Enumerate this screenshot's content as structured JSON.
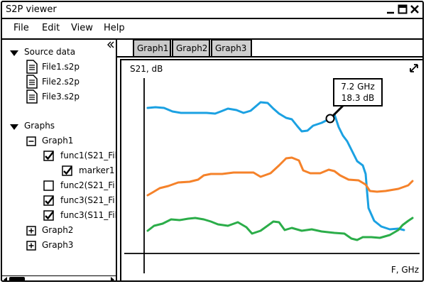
{
  "window": {
    "title": "S2P viewer"
  },
  "menu": {
    "items": [
      "File",
      "Edit",
      "View",
      "Help"
    ]
  },
  "sidebar": {
    "source_header": "Source data",
    "files": [
      "File1.s2p",
      "File2.s2p",
      "File3.s2p"
    ],
    "graphs_header": "Graphs",
    "graph1": "Graph1",
    "funcs": [
      "func1(S21_Fil",
      "func2(S21_Fi",
      "func3(S21_Fi",
      "func3(S11_Fil"
    ],
    "marker": "marker1",
    "graph2": "Graph2",
    "graph3": "Graph3",
    "checked": {
      "func1": true,
      "marker1": true,
      "func2": false,
      "func3a": true,
      "func3b": true
    }
  },
  "tabs": [
    "Graph1",
    "Graph2",
    "Graph3"
  ],
  "active_tab": "Graph1",
  "graph": {
    "ylabel": "S21, dB",
    "xlabel": "F, GHz",
    "tooltip_freq": "7.2 GHz",
    "tooltip_val": "18.3 dB"
  },
  "colors": {
    "blue": "#1ba1e2",
    "orange": "#f5822a",
    "green": "#2bad49"
  }
}
